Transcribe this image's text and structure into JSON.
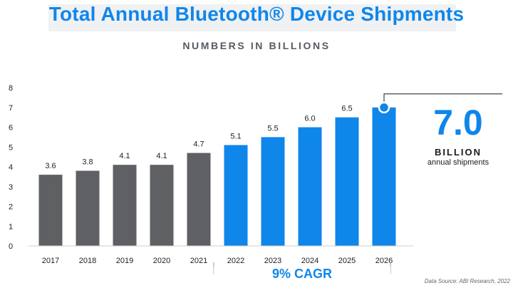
{
  "header": {
    "title": "Total Annual Bluetooth® Device Shipments",
    "subtitle": "NUMBERS IN BILLIONS"
  },
  "chart_data": {
    "type": "bar",
    "title": "Total Annual Bluetooth® Device Shipments",
    "subtitle": "NUMBERS IN BILLIONS",
    "xlabel": "",
    "ylabel": "",
    "categories": [
      "2017",
      "2018",
      "2019",
      "2020",
      "2021",
      "2022",
      "2023",
      "2024",
      "2025",
      "2026"
    ],
    "values": [
      3.6,
      3.8,
      4.1,
      4.1,
      4.7,
      5.1,
      5.5,
      6.0,
      6.5,
      7.0
    ],
    "data_labels": [
      "3.6",
      "3.8",
      "4.1",
      "4.1",
      "4.7",
      "5.1",
      "5.5",
      "6.0",
      "6.5",
      ""
    ],
    "ylim": [
      0,
      8
    ],
    "yticks": [
      "0",
      "1",
      "2",
      "3",
      "4",
      "5",
      "6",
      "7",
      "8"
    ],
    "grid": false,
    "colors": {
      "historical": "#5f6063",
      "forecast": "#0f86ea"
    },
    "forecast_start_index": 5,
    "annotations": {
      "cagr": "9% CAGR",
      "callout_value": "7.0",
      "callout_unit": "BILLION",
      "callout_desc": "annual shipments"
    },
    "source": "Data Source: ABI Research, 2022"
  }
}
